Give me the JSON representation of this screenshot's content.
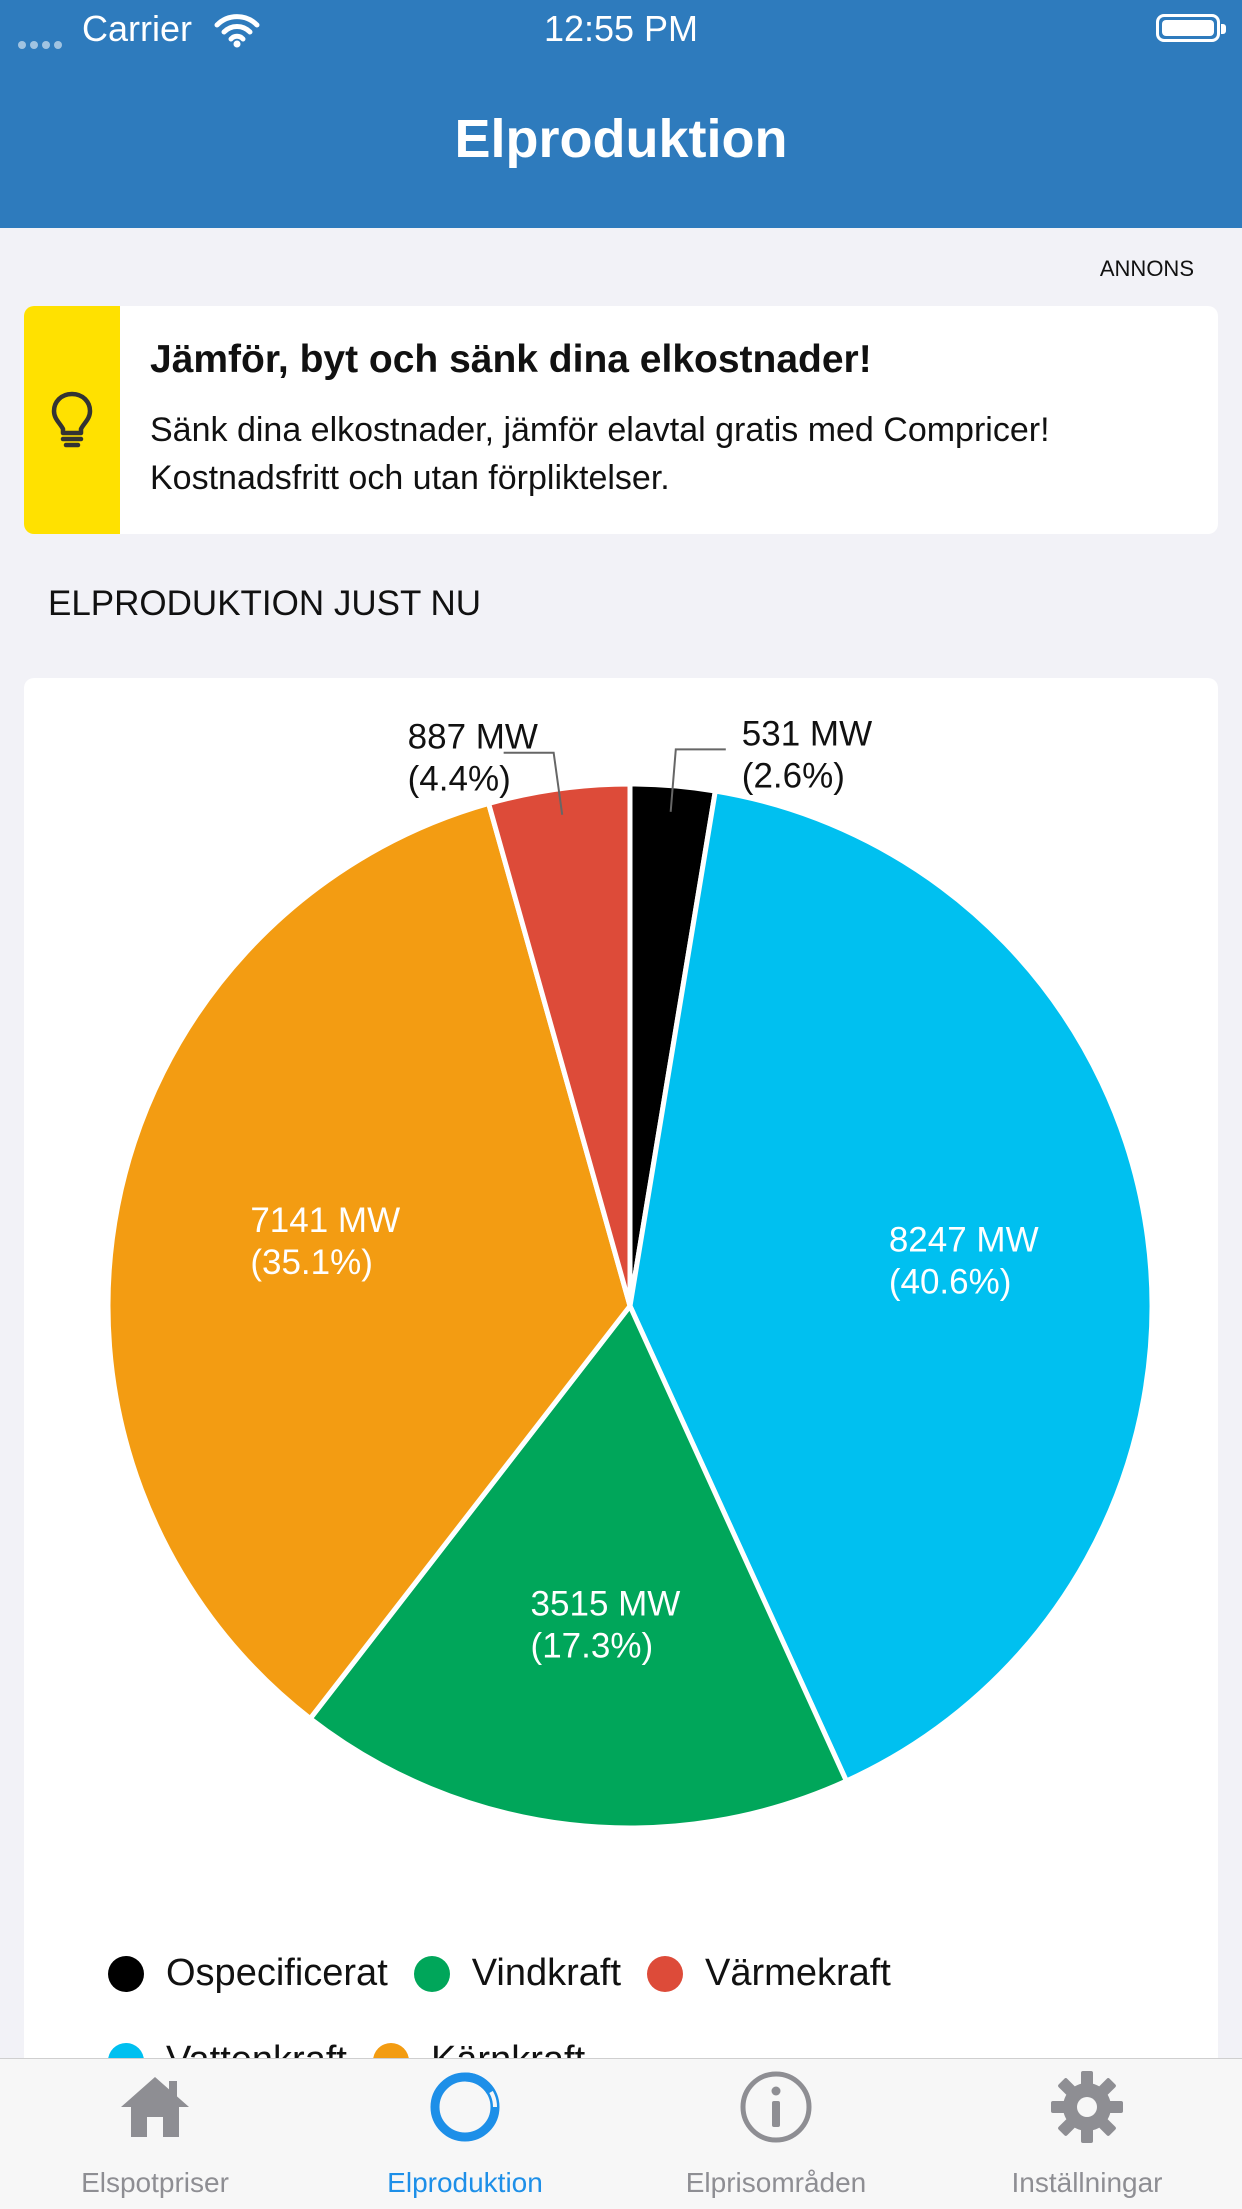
{
  "status_bar": {
    "carrier": "Carrier",
    "time": "12:55 PM"
  },
  "nav": {
    "title": "Elproduktion"
  },
  "ad": {
    "label": "ANNONS",
    "title": "Jämför, byt och sänk dina elkostnader!",
    "body": "Sänk dina elkostnader, jämför elavtal gratis med Compricer! Kostnadsfritt och utan förpliktelser.",
    "icon": "lightbulb-icon",
    "accent_color": "#ffe100"
  },
  "section": {
    "title": "ELPRODUKTION JUST NU"
  },
  "chart_data": {
    "type": "pie",
    "unit": "MW",
    "slices": [
      {
        "name": "Ospecificerat",
        "value": 531,
        "label": "531 MW",
        "percent_label": "(2.6%)",
        "color": "#000000"
      },
      {
        "name": "Vattenkraft",
        "value": 8247,
        "label": "8247 MW",
        "percent_label": "(40.6%)",
        "color": "#00c0f0"
      },
      {
        "name": "Vindkraft",
        "value": 3515,
        "label": "3515 MW",
        "percent_label": "(17.3%)",
        "color": "#00a65a"
      },
      {
        "name": "Kärnkraft",
        "value": 7141,
        "label": "7141 MW",
        "percent_label": "(35.1%)",
        "color": "#f39c12"
      },
      {
        "name": "Värmekraft",
        "value": 887,
        "label": "887 MW",
        "percent_label": "(4.4%)",
        "color": "#dd4b39"
      }
    ],
    "legend": [
      [
        {
          "label": "Ospecificerat",
          "color": "#000000"
        },
        {
          "label": "Vindkraft",
          "color": "#00a65a"
        },
        {
          "label": "Värmekraft",
          "color": "#dd4b39"
        }
      ],
      [
        {
          "label": "Vattenkraft",
          "color": "#00c0f0"
        },
        {
          "label": "Kärnkraft",
          "color": "#f39c12"
        }
      ]
    ],
    "legend_position": "bottom"
  },
  "tabs": [
    {
      "label": "Elspotpriser",
      "icon": "house-icon",
      "active": false
    },
    {
      "label": "Elproduktion",
      "icon": "ring-chart-icon",
      "active": true
    },
    {
      "label": "Elprisområden",
      "icon": "info-icon",
      "active": false
    },
    {
      "label": "Inställningar",
      "icon": "gear-icon",
      "active": false
    }
  ],
  "colors": {
    "header": "#2e7bbd",
    "tab_active": "#1d8fe8",
    "tab_inactive": "#8e8e93"
  }
}
